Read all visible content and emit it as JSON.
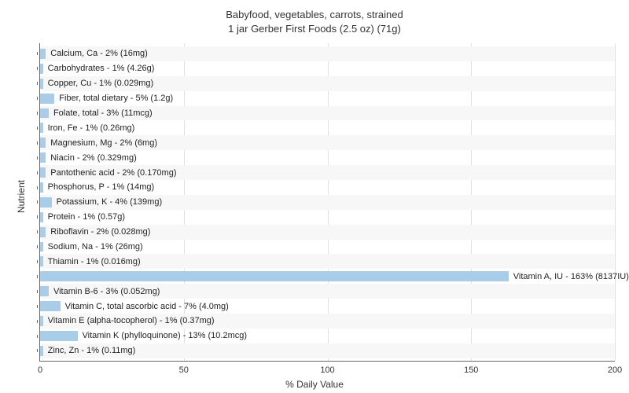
{
  "chart": {
    "type": "bar-horizontal",
    "title_line1": "Babyfood, vegetables, carrots, strained",
    "title_line2": "1 jar Gerber First Foods (2.5 oz) (71g)",
    "title_fontsize": 13,
    "y_axis_label": "Nutrient",
    "x_axis_label": "% Daily Value",
    "label_fontsize": 12,
    "xlim": [
      0,
      200
    ],
    "xtick_step": 50,
    "xticks": [
      0,
      50,
      100,
      150,
      200
    ],
    "bar_color": "#a9cce8",
    "background_color": "#ffffff",
    "alt_row_color": "#f7f7f7",
    "grid_color": "#e0e0e0",
    "axis_color": "#666666",
    "text_color": "#222222",
    "bar_label_fontsize": 11,
    "tick_label_fontsize": 11,
    "data": [
      {
        "label": "Calcium, Ca - 2% (16mg)",
        "value": 2
      },
      {
        "label": "Carbohydrates - 1% (4.26g)",
        "value": 1
      },
      {
        "label": "Copper, Cu - 1% (0.029mg)",
        "value": 1
      },
      {
        "label": "Fiber, total dietary - 5% (1.2g)",
        "value": 5
      },
      {
        "label": "Folate, total - 3% (11mcg)",
        "value": 3
      },
      {
        "label": "Iron, Fe - 1% (0.26mg)",
        "value": 1
      },
      {
        "label": "Magnesium, Mg - 2% (6mg)",
        "value": 2
      },
      {
        "label": "Niacin - 2% (0.329mg)",
        "value": 2
      },
      {
        "label": "Pantothenic acid - 2% (0.170mg)",
        "value": 2
      },
      {
        "label": "Phosphorus, P - 1% (14mg)",
        "value": 1
      },
      {
        "label": "Potassium, K - 4% (139mg)",
        "value": 4
      },
      {
        "label": "Protein - 1% (0.57g)",
        "value": 1
      },
      {
        "label": "Riboflavin - 2% (0.028mg)",
        "value": 2
      },
      {
        "label": "Sodium, Na - 1% (26mg)",
        "value": 1
      },
      {
        "label": "Thiamin - 1% (0.016mg)",
        "value": 1
      },
      {
        "label": "Vitamin A, IU - 163% (8137IU)",
        "value": 163
      },
      {
        "label": "Vitamin B-6 - 3% (0.052mg)",
        "value": 3
      },
      {
        "label": "Vitamin C, total ascorbic acid - 7% (4.0mg)",
        "value": 7
      },
      {
        "label": "Vitamin E (alpha-tocopherol) - 1% (0.37mg)",
        "value": 1
      },
      {
        "label": "Vitamin K (phylloquinone) - 13% (10.2mcg)",
        "value": 13
      },
      {
        "label": "Zinc, Zn - 1% (0.11mg)",
        "value": 1
      }
    ]
  }
}
